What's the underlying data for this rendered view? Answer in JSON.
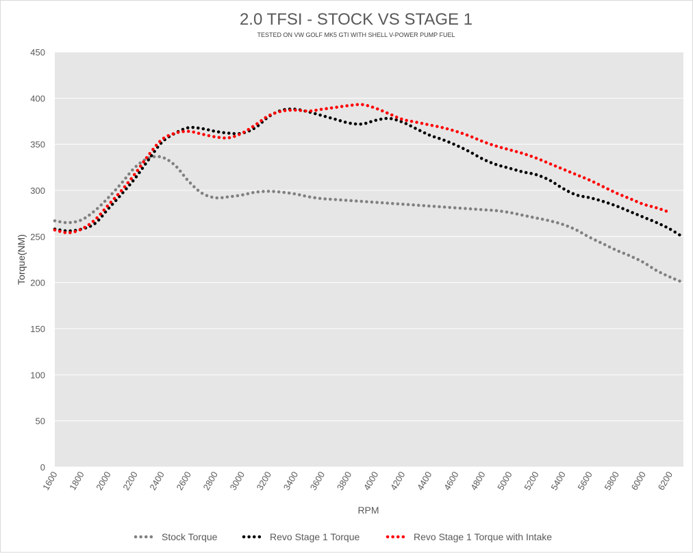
{
  "chart_data": {
    "type": "line",
    "title": "2.0 TFSI - STOCK VS STAGE 1",
    "subtitle": "TESTED ON VW GOLF MK5 GTI WITH SHELL V-POWER PUMP FUEL",
    "xlabel": "RPM",
    "ylabel": "Torque(NM)",
    "xlim": [
      1600,
      6300
    ],
    "ylim": [
      0,
      450
    ],
    "y_ticks": [
      0,
      50,
      100,
      150,
      200,
      250,
      300,
      350,
      400,
      450
    ],
    "x_ticks": [
      1600,
      1800,
      2000,
      2200,
      2400,
      2600,
      2800,
      3000,
      3200,
      3400,
      3600,
      3800,
      4000,
      4200,
      4400,
      4600,
      4800,
      5000,
      5200,
      5400,
      5600,
      5800,
      6000,
      6200
    ],
    "grid": true,
    "legend_position": "bottom",
    "line_style": "dotted",
    "plot_background": "#e6e6e6",
    "series": [
      {
        "name": "Stock Torque",
        "color": "#808080",
        "points": [
          [
            1600,
            267
          ],
          [
            1700,
            265
          ],
          [
            1800,
            268
          ],
          [
            1900,
            278
          ],
          [
            2000,
            292
          ],
          [
            2100,
            308
          ],
          [
            2200,
            325
          ],
          [
            2300,
            335
          ],
          [
            2400,
            336
          ],
          [
            2500,
            327
          ],
          [
            2600,
            310
          ],
          [
            2700,
            297
          ],
          [
            2800,
            292
          ],
          [
            2900,
            293
          ],
          [
            3000,
            295
          ],
          [
            3100,
            298
          ],
          [
            3200,
            299
          ],
          [
            3300,
            298
          ],
          [
            3400,
            296
          ],
          [
            3500,
            293
          ],
          [
            3600,
            291
          ],
          [
            3700,
            290
          ],
          [
            3800,
            289
          ],
          [
            3900,
            288
          ],
          [
            4000,
            287
          ],
          [
            4100,
            286
          ],
          [
            4200,
            285
          ],
          [
            4300,
            284
          ],
          [
            4400,
            283
          ],
          [
            4500,
            282
          ],
          [
            4600,
            281
          ],
          [
            4700,
            280
          ],
          [
            4800,
            279
          ],
          [
            4900,
            278
          ],
          [
            5000,
            276
          ],
          [
            5100,
            273
          ],
          [
            5200,
            270
          ],
          [
            5300,
            267
          ],
          [
            5400,
            263
          ],
          [
            5500,
            257
          ],
          [
            5600,
            249
          ],
          [
            5700,
            242
          ],
          [
            5800,
            235
          ],
          [
            5900,
            229
          ],
          [
            6000,
            222
          ],
          [
            6100,
            213
          ],
          [
            6200,
            206
          ],
          [
            6300,
            200
          ]
        ]
      },
      {
        "name": "Revo Stage 1 Torque",
        "color": "#000000",
        "points": [
          [
            1600,
            258
          ],
          [
            1700,
            256
          ],
          [
            1800,
            258
          ],
          [
            1900,
            264
          ],
          [
            2000,
            280
          ],
          [
            2100,
            296
          ],
          [
            2200,
            313
          ],
          [
            2300,
            333
          ],
          [
            2400,
            352
          ],
          [
            2500,
            362
          ],
          [
            2600,
            368
          ],
          [
            2700,
            367
          ],
          [
            2800,
            364
          ],
          [
            2900,
            362
          ],
          [
            3000,
            362
          ],
          [
            3100,
            368
          ],
          [
            3200,
            380
          ],
          [
            3300,
            387
          ],
          [
            3400,
            388
          ],
          [
            3500,
            385
          ],
          [
            3600,
            381
          ],
          [
            3700,
            377
          ],
          [
            3800,
            373
          ],
          [
            3900,
            372
          ],
          [
            4000,
            376
          ],
          [
            4100,
            378
          ],
          [
            4200,
            374
          ],
          [
            4300,
            367
          ],
          [
            4400,
            360
          ],
          [
            4500,
            355
          ],
          [
            4600,
            349
          ],
          [
            4700,
            342
          ],
          [
            4800,
            334
          ],
          [
            4900,
            328
          ],
          [
            5000,
            324
          ],
          [
            5100,
            320
          ],
          [
            5200,
            317
          ],
          [
            5300,
            311
          ],
          [
            5400,
            302
          ],
          [
            5500,
            295
          ],
          [
            5600,
            292
          ],
          [
            5700,
            288
          ],
          [
            5800,
            283
          ],
          [
            5900,
            277
          ],
          [
            6000,
            271
          ],
          [
            6100,
            265
          ],
          [
            6200,
            258
          ],
          [
            6300,
            249
          ]
        ]
      },
      {
        "name": "Revo Stage 1 Torque with Intake",
        "color": "#ff0000",
        "points": [
          [
            1600,
            257
          ],
          [
            1700,
            254
          ],
          [
            1800,
            258
          ],
          [
            1900,
            268
          ],
          [
            2000,
            284
          ],
          [
            2100,
            300
          ],
          [
            2200,
            318
          ],
          [
            2300,
            338
          ],
          [
            2400,
            355
          ],
          [
            2500,
            362
          ],
          [
            2600,
            364
          ],
          [
            2700,
            361
          ],
          [
            2800,
            358
          ],
          [
            2900,
            357
          ],
          [
            3000,
            362
          ],
          [
            3100,
            371
          ],
          [
            3200,
            381
          ],
          [
            3300,
            386
          ],
          [
            3400,
            387
          ],
          [
            3500,
            386
          ],
          [
            3600,
            388
          ],
          [
            3700,
            390
          ],
          [
            3800,
            392
          ],
          [
            3900,
            393
          ],
          [
            4000,
            389
          ],
          [
            4100,
            383
          ],
          [
            4200,
            377
          ],
          [
            4300,
            374
          ],
          [
            4400,
            371
          ],
          [
            4500,
            368
          ],
          [
            4600,
            364
          ],
          [
            4700,
            359
          ],
          [
            4800,
            353
          ],
          [
            4900,
            348
          ],
          [
            5000,
            344
          ],
          [
            5100,
            340
          ],
          [
            5200,
            335
          ],
          [
            5300,
            329
          ],
          [
            5400,
            323
          ],
          [
            5500,
            317
          ],
          [
            5600,
            311
          ],
          [
            5700,
            304
          ],
          [
            5800,
            297
          ],
          [
            5900,
            291
          ],
          [
            6000,
            285
          ],
          [
            6100,
            281
          ],
          [
            6200,
            276
          ]
        ]
      }
    ]
  }
}
